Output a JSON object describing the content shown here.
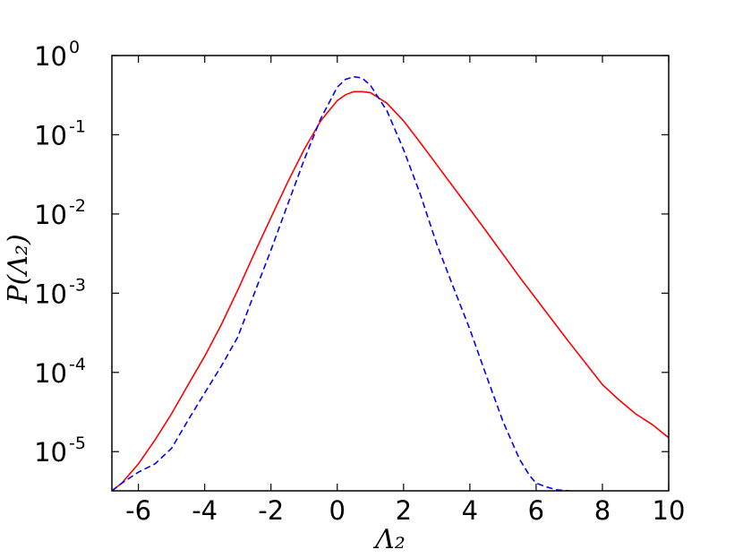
{
  "chart_data": {
    "type": "line",
    "title": "",
    "xlabel": "Λ₂",
    "ylabel": "P(Λ₂)",
    "x_scale": "linear",
    "y_scale": "log",
    "xlim": [
      -6.8,
      10
    ],
    "ylim": [
      3.2e-06,
      1
    ],
    "grid": false,
    "legend": "none",
    "x_ticks": [
      -6,
      -4,
      -2,
      0,
      2,
      4,
      6,
      8,
      10
    ],
    "x_tick_labels": [
      "-6",
      "-4",
      "-2",
      "0",
      "2",
      "4",
      "6",
      "8",
      "10"
    ],
    "y_ticks": [
      1e-05,
      0.0001,
      0.001,
      0.01,
      0.1,
      1
    ],
    "y_tick_labels": [
      {
        "base": "10",
        "exp": "-5"
      },
      {
        "base": "10",
        "exp": "-4"
      },
      {
        "base": "10",
        "exp": "-3"
      },
      {
        "base": "10",
        "exp": "-2"
      },
      {
        "base": "10",
        "exp": "-1"
      },
      {
        "base": "10",
        "exp": "0"
      }
    ],
    "series": [
      {
        "color": "#ff0000",
        "dash": "solid",
        "x": [
          -6.8,
          -6.5,
          -6.0,
          -5.5,
          -5.0,
          -4.5,
          -4.0,
          -3.5,
          -3.0,
          -2.5,
          -2.0,
          -1.5,
          -1.0,
          -0.5,
          0.0,
          0.25,
          0.5,
          0.75,
          1.0,
          1.5,
          2.0,
          2.5,
          3.0,
          3.5,
          4.0,
          4.5,
          5.0,
          5.5,
          6.0,
          6.5,
          7.0,
          7.5,
          8.0,
          8.5,
          9.0,
          9.5,
          10.0
        ],
        "y": [
          3.2e-06,
          4e-06,
          7e-06,
          1.4e-05,
          3e-05,
          7e-05,
          0.00016,
          0.0004,
          0.0011,
          0.0032,
          0.009,
          0.025,
          0.065,
          0.15,
          0.27,
          0.32,
          0.35,
          0.35,
          0.34,
          0.25,
          0.15,
          0.08,
          0.042,
          0.022,
          0.0115,
          0.006,
          0.0031,
          0.0016,
          0.00085,
          0.00045,
          0.00024,
          0.00013,
          7e-05,
          4.5e-05,
          3e-05,
          2.2e-05,
          1.5e-05
        ]
      },
      {
        "color": "#0000ff",
        "dash": "dashed",
        "x": [
          -6.8,
          -6.5,
          -6.0,
          -5.5,
          -5.0,
          -4.5,
          -4.0,
          -3.5,
          -3.0,
          -2.5,
          -2.0,
          -1.5,
          -1.0,
          -0.5,
          0.0,
          0.25,
          0.5,
          0.75,
          1.0,
          1.5,
          2.0,
          2.5,
          3.0,
          3.5,
          4.0,
          4.5,
          5.0,
          5.5,
          5.8,
          6.0,
          6.3,
          6.6,
          7.0
        ],
        "y": [
          3.2e-06,
          4e-06,
          5.5e-06,
          7e-06,
          1.1e-05,
          2.5e-05,
          5.5e-05,
          0.00012,
          0.00028,
          0.001,
          0.0035,
          0.013,
          0.048,
          0.16,
          0.4,
          0.5,
          0.54,
          0.52,
          0.42,
          0.2,
          0.065,
          0.018,
          0.0042,
          0.0012,
          0.00035,
          9e-05,
          2.4e-05,
          8e-06,
          5e-06,
          4e-06,
          3.6e-06,
          3.3e-06,
          3.2e-06
        ]
      }
    ]
  }
}
